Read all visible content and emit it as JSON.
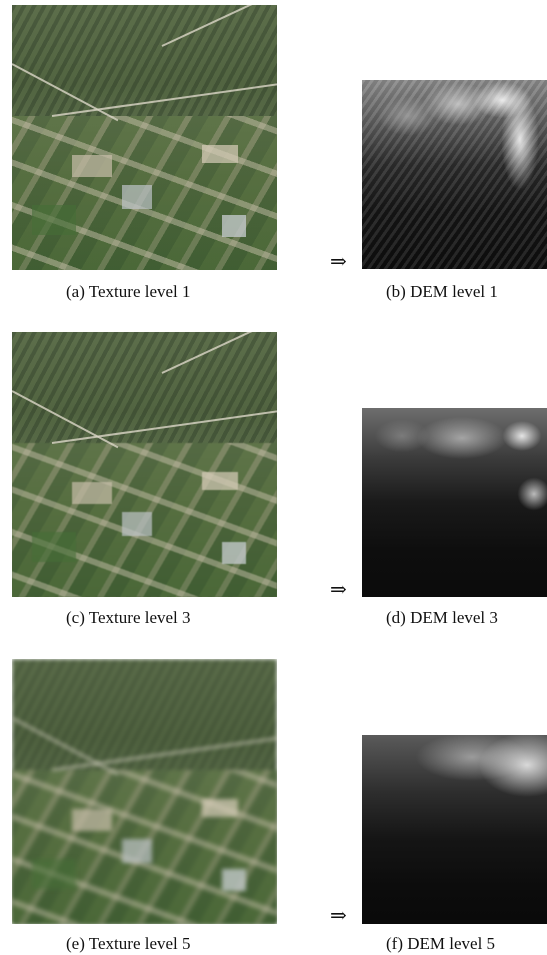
{
  "figure": {
    "arrow": "⇒",
    "rows": [
      {
        "texture_caption": "(a) Texture level 1",
        "dem_caption": "(b) DEM level 1"
      },
      {
        "texture_caption": "(c) Texture level 3",
        "dem_caption": "(d) DEM level 3"
      },
      {
        "texture_caption": "(e) Texture level 5",
        "dem_caption": "(f) DEM level 5"
      }
    ]
  }
}
